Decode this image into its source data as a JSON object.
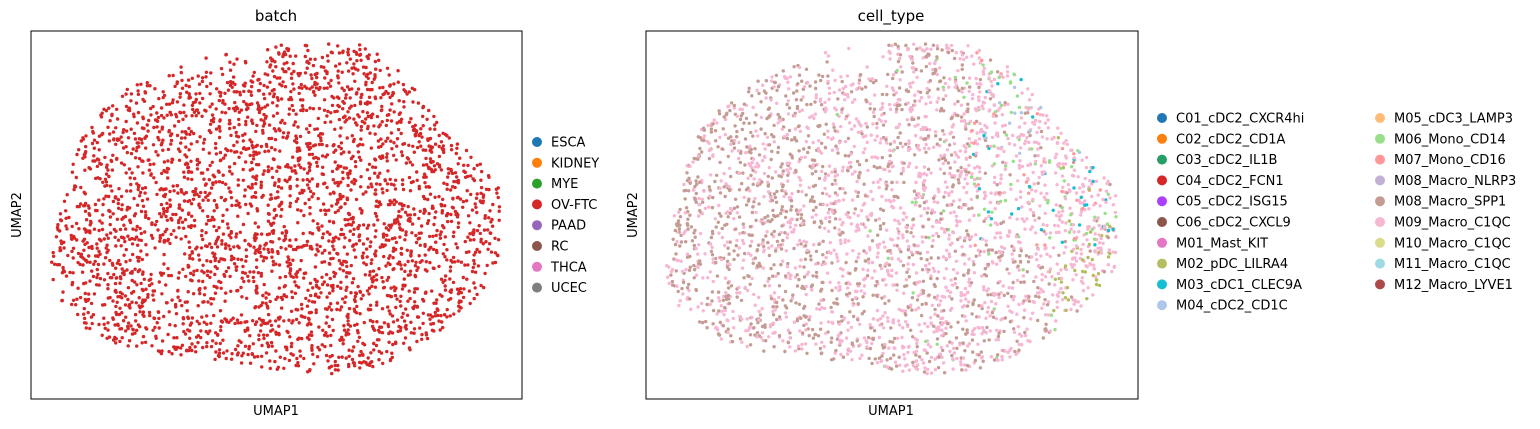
{
  "chart_data": [
    {
      "type": "scatter",
      "title": "batch",
      "xlabel": "UMAP1",
      "ylabel": "UMAP2",
      "xticks": [],
      "yticks": [],
      "grid": false,
      "legend_placement": "right",
      "legend": [
        {
          "name": "ESCA",
          "color": "#1f77b4"
        },
        {
          "name": "KIDNEY",
          "color": "#ff7f0e"
        },
        {
          "name": "MYE",
          "color": "#2ca02c"
        },
        {
          "name": "OV-FTC",
          "color": "#d62728"
        },
        {
          "name": "PAAD",
          "color": "#9467bd"
        },
        {
          "name": "RC",
          "color": "#8c564b"
        },
        {
          "name": "THCA",
          "color": "#e377c2"
        },
        {
          "name": "UCEC",
          "color": "#7f7f7f"
        }
      ],
      "visible_series": [
        "OV-FTC"
      ]
    },
    {
      "type": "scatter",
      "title": "cell_type",
      "xlabel": "UMAP1",
      "ylabel": "UMAP2",
      "xticks": [],
      "yticks": [],
      "grid": false,
      "legend_placement": "right",
      "legend_columns": 2,
      "legend": [
        {
          "name": "C01_cDC2_CXCR4hi",
          "color": "#1f77b4"
        },
        {
          "name": "C02_cDC2_CD1A",
          "color": "#ff7f0e"
        },
        {
          "name": "C03_cDC2_IL1B",
          "color": "#279e68"
        },
        {
          "name": "C04_cDC2_FCN1",
          "color": "#d62728"
        },
        {
          "name": "C05_cDC2_ISG15",
          "color": "#aa40fc"
        },
        {
          "name": "C06_cDC2_CXCL9",
          "color": "#8c564b"
        },
        {
          "name": "M01_Mast_KIT",
          "color": "#e377c2"
        },
        {
          "name": "M02_pDC_LILRA4",
          "color": "#b5bd61"
        },
        {
          "name": "M03_cDC1_CLEC9A",
          "color": "#17becf"
        },
        {
          "name": "M04_cDC2_CD1C",
          "color": "#aec7e8"
        },
        {
          "name": "M05_cDC3_LAMP3",
          "color": "#ffbb78"
        },
        {
          "name": "M06_Mono_CD14",
          "color": "#98df8a"
        },
        {
          "name": "M07_Mono_CD16",
          "color": "#ff9896"
        },
        {
          "name": "M08_Macro_NLRP3",
          "color": "#c5b0d5"
        },
        {
          "name": "M08_Macro_SPP1",
          "color": "#c49c94"
        },
        {
          "name": "M09_Macro_C1QC",
          "color": "#f7b6d2"
        },
        {
          "name": "M10_Macro_C1QC",
          "color": "#dbdb8d"
        },
        {
          "name": "M11_Macro_C1QC",
          "color": "#9edae5"
        },
        {
          "name": "M12_Macro_LYVE1",
          "color": "#ad494a"
        }
      ],
      "dominant_series": [
        "M09_Macro_C1QC",
        "M08_Macro_SPP1"
      ]
    }
  ]
}
